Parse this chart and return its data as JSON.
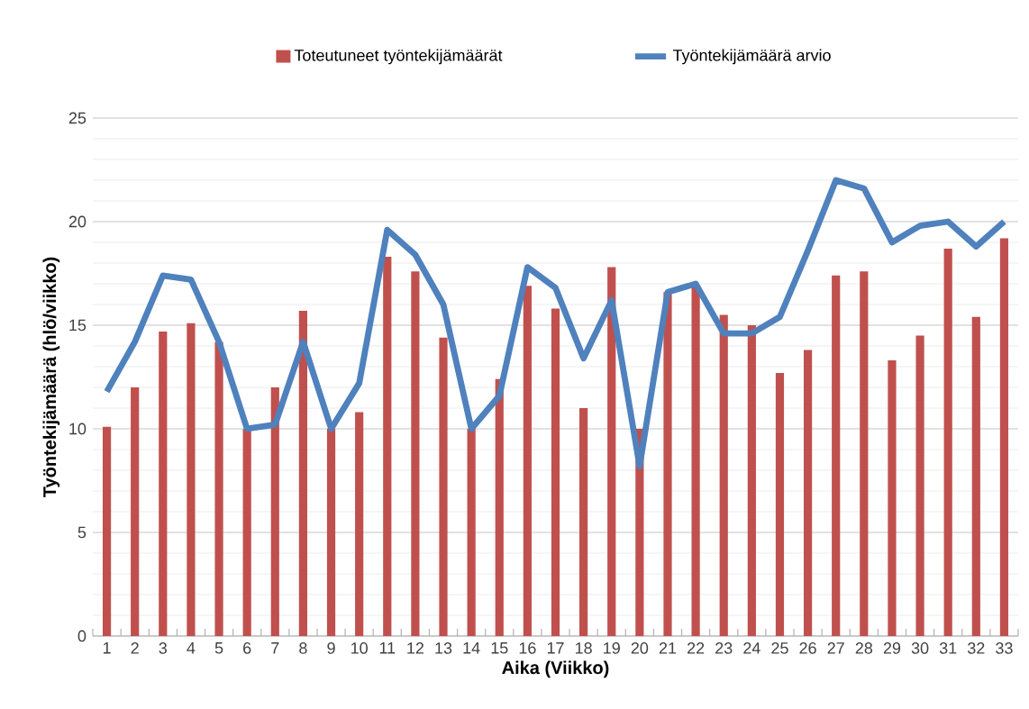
{
  "chart_data": {
    "type": "bar",
    "xlabel": "Aika (Viikko)",
    "ylabel": "Työntekijämäärä (hlö/viikko)",
    "categories": [
      "1",
      "2",
      "3",
      "4",
      "5",
      "6",
      "7",
      "8",
      "9",
      "10",
      "11",
      "12",
      "13",
      "14",
      "15",
      "16",
      "17",
      "18",
      "19",
      "20",
      "21",
      "22",
      "23",
      "24",
      "25",
      "26",
      "27",
      "28",
      "29",
      "30",
      "31",
      "32",
      "33"
    ],
    "series": [
      {
        "name": "Toteutuneet työntekijämäärät",
        "color": "#c0504d",
        "values": [
          10.1,
          12.0,
          14.7,
          15.1,
          14.2,
          10.0,
          12.0,
          15.7,
          10.0,
          10.8,
          18.3,
          17.6,
          14.4,
          10.0,
          12.4,
          16.9,
          15.8,
          11.0,
          17.8,
          10.0,
          16.6,
          16.9,
          15.5,
          15.0,
          12.7,
          13.8,
          17.4,
          17.6,
          13.3,
          14.5,
          18.7,
          15.4,
          19.2
        ]
      },
      {
        "name": "Työntekijämäärä arvio",
        "type": "line",
        "color": "#4f81bd",
        "values": [
          11.8,
          14.2,
          17.4,
          17.2,
          14.2,
          10.0,
          10.2,
          14.2,
          10.0,
          12.2,
          19.6,
          18.4,
          16.0,
          10.0,
          11.6,
          17.8,
          16.8,
          13.4,
          16.2,
          8.2,
          16.6,
          17.0,
          14.6,
          14.6,
          15.4,
          18.6,
          22.0,
          21.6,
          19.0,
          19.8,
          20.0,
          18.8,
          20.0
        ]
      }
    ],
    "ylim": [
      0,
      25
    ],
    "yticks": [
      0,
      5,
      10,
      15,
      20,
      25
    ],
    "grid": "y",
    "legend": "top",
    "marker": "none",
    "line_style": "solid"
  }
}
